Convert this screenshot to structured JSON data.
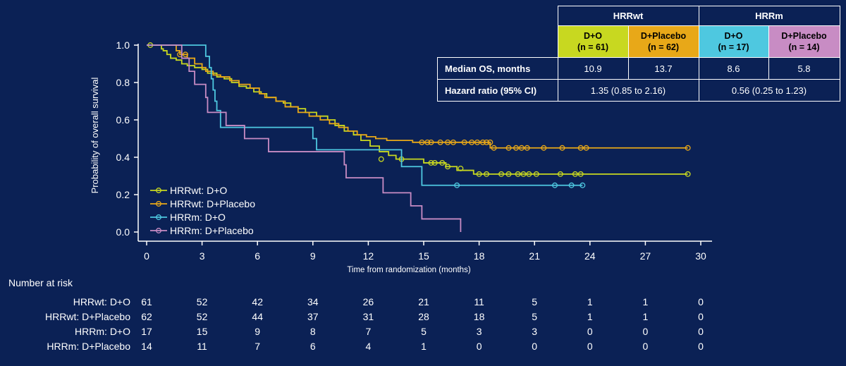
{
  "chart_data": {
    "type": "line",
    "ylabel": "Probability of overall survival",
    "xlabel": "Time from randomization (months)",
    "xlim": [
      0,
      30
    ],
    "ylim": [
      0,
      1.0
    ],
    "x_ticks": [
      "0",
      "3",
      "6",
      "9",
      "12",
      "15",
      "18",
      "21",
      "24",
      "27",
      "30"
    ],
    "y_ticks": [
      "0.0",
      "0.2",
      "0.4",
      "0.6",
      "0.8",
      "1.0"
    ],
    "grid": false,
    "legend_position": "bottom-left",
    "series": [
      {
        "name": "HRRwt: D+O",
        "color": "#c8d820",
        "steps": [
          [
            0,
            1.0
          ],
          [
            0.8,
            0.98
          ],
          [
            0.9,
            0.97
          ],
          [
            1.1,
            0.95
          ],
          [
            1.3,
            0.93
          ],
          [
            1.6,
            0.92
          ],
          [
            1.9,
            0.9
          ],
          [
            2.2,
            0.89
          ],
          [
            2.6,
            0.88
          ],
          [
            3.0,
            0.87
          ],
          [
            3.3,
            0.85
          ],
          [
            3.8,
            0.83
          ],
          [
            4.2,
            0.82
          ],
          [
            4.6,
            0.8
          ],
          [
            5.0,
            0.78
          ],
          [
            5.4,
            0.77
          ],
          [
            5.8,
            0.75
          ],
          [
            6.2,
            0.74
          ],
          [
            6.5,
            0.72
          ],
          [
            7.0,
            0.7
          ],
          [
            7.4,
            0.69
          ],
          [
            7.8,
            0.67
          ],
          [
            8.2,
            0.66
          ],
          [
            8.6,
            0.64
          ],
          [
            9.2,
            0.62
          ],
          [
            9.8,
            0.6
          ],
          [
            10.2,
            0.57
          ],
          [
            10.7,
            0.54
          ],
          [
            11.2,
            0.52
          ],
          [
            11.6,
            0.49
          ],
          [
            12.1,
            0.46
          ],
          [
            12.6,
            0.43
          ],
          [
            13.1,
            0.41
          ],
          [
            13.5,
            0.39
          ],
          [
            14.0,
            0.39
          ],
          [
            15.0,
            0.37
          ],
          [
            16.2,
            0.35
          ],
          [
            16.8,
            0.33
          ],
          [
            17.7,
            0.31
          ],
          [
            29.3,
            0.31
          ]
        ],
        "censor": [
          [
            0.2,
            1.0
          ],
          [
            12.7,
            0.39
          ],
          [
            13.8,
            0.39
          ],
          [
            15.4,
            0.37
          ],
          [
            15.6,
            0.37
          ],
          [
            16.0,
            0.37
          ],
          [
            16.3,
            0.35
          ],
          [
            17.0,
            0.34
          ],
          [
            18.0,
            0.31
          ],
          [
            18.4,
            0.31
          ],
          [
            19.2,
            0.31
          ],
          [
            19.6,
            0.31
          ],
          [
            20.1,
            0.31
          ],
          [
            20.4,
            0.31
          ],
          [
            20.7,
            0.31
          ],
          [
            21.1,
            0.31
          ],
          [
            22.4,
            0.31
          ],
          [
            23.2,
            0.31
          ],
          [
            23.5,
            0.31
          ],
          [
            29.3,
            0.31
          ]
        ]
      },
      {
        "name": "HRRwt: D+Placebo",
        "color": "#e8a818",
        "steps": [
          [
            0,
            1.0
          ],
          [
            1.6,
            0.97
          ],
          [
            1.8,
            0.95
          ],
          [
            2.2,
            0.93
          ],
          [
            2.6,
            0.9
          ],
          [
            3.0,
            0.88
          ],
          [
            3.2,
            0.86
          ],
          [
            3.6,
            0.84
          ],
          [
            4.0,
            0.83
          ],
          [
            4.5,
            0.81
          ],
          [
            5.0,
            0.79
          ],
          [
            5.6,
            0.77
          ],
          [
            6.1,
            0.74
          ],
          [
            6.4,
            0.72
          ],
          [
            7.0,
            0.7
          ],
          [
            7.5,
            0.67
          ],
          [
            8.2,
            0.64
          ],
          [
            8.8,
            0.62
          ],
          [
            9.4,
            0.6
          ],
          [
            9.9,
            0.58
          ],
          [
            10.4,
            0.56
          ],
          [
            10.9,
            0.54
          ],
          [
            11.4,
            0.52
          ],
          [
            11.9,
            0.51
          ],
          [
            12.4,
            0.5
          ],
          [
            13.0,
            0.49
          ],
          [
            14.4,
            0.48
          ],
          [
            18.6,
            0.45
          ],
          [
            29.3,
            0.45
          ]
        ],
        "censor": [
          [
            1.8,
            0.95
          ],
          [
            2.1,
            0.95
          ],
          [
            14.9,
            0.48
          ],
          [
            15.2,
            0.48
          ],
          [
            15.4,
            0.48
          ],
          [
            15.9,
            0.48
          ],
          [
            16.3,
            0.48
          ],
          [
            16.6,
            0.48
          ],
          [
            17.2,
            0.48
          ],
          [
            17.6,
            0.48
          ],
          [
            17.9,
            0.48
          ],
          [
            18.2,
            0.48
          ],
          [
            18.4,
            0.48
          ],
          [
            18.6,
            0.48
          ],
          [
            18.8,
            0.45
          ],
          [
            19.6,
            0.45
          ],
          [
            20.0,
            0.45
          ],
          [
            20.3,
            0.45
          ],
          [
            20.6,
            0.45
          ],
          [
            21.5,
            0.45
          ],
          [
            22.5,
            0.45
          ],
          [
            23.5,
            0.45
          ],
          [
            23.8,
            0.45
          ],
          [
            29.3,
            0.45
          ]
        ]
      },
      {
        "name": "HRRm: D+O",
        "color": "#4ec8e0",
        "steps": [
          [
            0,
            1.0
          ],
          [
            3.2,
            0.94
          ],
          [
            3.4,
            0.88
          ],
          [
            3.5,
            0.82
          ],
          [
            3.6,
            0.76
          ],
          [
            3.7,
            0.7
          ],
          [
            3.8,
            0.65
          ],
          [
            4.0,
            0.56
          ],
          [
            9.0,
            0.5
          ],
          [
            9.2,
            0.44
          ],
          [
            13.8,
            0.35
          ],
          [
            14.9,
            0.25
          ],
          [
            23.6,
            0.25
          ]
        ],
        "censor": [
          [
            16.8,
            0.25
          ],
          [
            22.1,
            0.25
          ],
          [
            23.0,
            0.25
          ],
          [
            23.6,
            0.25
          ]
        ]
      },
      {
        "name": "HRRm: D+Placebo",
        "color": "#c88cc4",
        "steps": [
          [
            0,
            1.0
          ],
          [
            1.9,
            0.93
          ],
          [
            2.3,
            0.86
          ],
          [
            2.6,
            0.79
          ],
          [
            3.2,
            0.72
          ],
          [
            3.3,
            0.64
          ],
          [
            4.3,
            0.57
          ],
          [
            5.3,
            0.5
          ],
          [
            6.6,
            0.43
          ],
          [
            10.7,
            0.36
          ],
          [
            10.8,
            0.29
          ],
          [
            12.8,
            0.21
          ],
          [
            14.3,
            0.14
          ],
          [
            14.9,
            0.07
          ],
          [
            17.0,
            0.0
          ]
        ],
        "censor": []
      }
    ],
    "risk_table": {
      "title": "Number at risk",
      "times": [
        0,
        3,
        6,
        9,
        12,
        15,
        18,
        21,
        24,
        27,
        30
      ],
      "rows": [
        {
          "label": "HRRwt: D+O",
          "counts": [
            "61",
            "52",
            "42",
            "34",
            "26",
            "21",
            "11",
            "5",
            "1",
            "1",
            "0"
          ]
        },
        {
          "label": "HRRwt: D+Placebo",
          "counts": [
            "62",
            "52",
            "44",
            "37",
            "31",
            "28",
            "18",
            "5",
            "1",
            "1",
            "0"
          ]
        },
        {
          "label": "HRRm: D+O",
          "counts": [
            "17",
            "15",
            "9",
            "8",
            "7",
            "5",
            "3",
            "3",
            "0",
            "0",
            "0"
          ]
        },
        {
          "label": "HRRm: D+Placebo",
          "counts": [
            "14",
            "11",
            "7",
            "6",
            "4",
            "1",
            "0",
            "0",
            "0",
            "0",
            "0"
          ]
        }
      ]
    }
  },
  "summary_table": {
    "groups": [
      "HRRwt",
      "HRRm"
    ],
    "arms": [
      {
        "name": "D+O",
        "n": "(n = 61)",
        "color": "#c8d820"
      },
      {
        "name": "D+Placebo",
        "n": "(n = 62)",
        "color": "#e8a818"
      },
      {
        "name": "D+O",
        "n": "(n = 17)",
        "color": "#4ec8e0"
      },
      {
        "name": "D+Placebo",
        "n": "(n = 14)",
        "color": "#c88cc4"
      }
    ],
    "median_label": "Median OS, months",
    "medians": [
      "10.9",
      "13.7",
      "8.6",
      "5.8"
    ],
    "hr_label": "Hazard ratio  (95% CI)",
    "hr_values": [
      "1.35 (0.85 to 2.16)",
      "0.56 (0.25 to 1.23)"
    ]
  }
}
